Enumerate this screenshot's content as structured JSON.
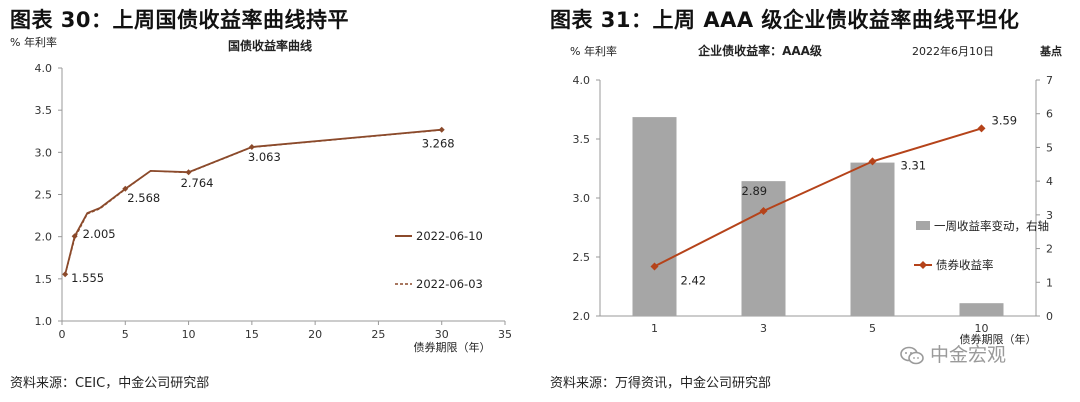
{
  "left": {
    "figure_title": "图表 30：上周国债收益率曲线持平",
    "unit_label": "% 年利率",
    "source": "资料来源：CEIC，中金公司研究部",
    "x_unit_label": "债券期限（年）",
    "colors": {
      "line": "#8B4A2B",
      "marker": "#8B4A2B",
      "axis": "#999999"
    }
  },
  "right": {
    "figure_title": "图表 31：上周 AAA 级企业债收益率曲线平坦化",
    "left_unit_label": "% 年利率",
    "right_unit_label": "基点",
    "date_label": "2022年6月10日",
    "source": "资料来源：万得资讯，中金公司研究部",
    "x_unit_label": "债券期限（年）",
    "colors": {
      "bar": "#A6A6A6",
      "line": "#B5431A",
      "axis": "#999999"
    }
  },
  "watermark": "中金宏观",
  "chart_data": [
    {
      "type": "line",
      "title": "国债收益率曲线",
      "xlabel": "债券期限（年）",
      "ylabel": "% 年利率",
      "xlim": [
        0,
        35
      ],
      "ylim": [
        1.0,
        4.0
      ],
      "xticks": [
        0,
        5,
        10,
        15,
        20,
        25,
        30,
        35
      ],
      "yticks": [
        1.0,
        1.5,
        2.0,
        2.5,
        3.0,
        3.5,
        4.0
      ],
      "legend_position": "right",
      "series": [
        {
          "name": "2022-06-10",
          "style": "solid-with-markers",
          "x": [
            0.25,
            1,
            2,
            3,
            5,
            7,
            10,
            15,
            30
          ],
          "y": [
            1.555,
            2.005,
            2.28,
            2.34,
            2.568,
            2.78,
            2.764,
            3.063,
            3.268
          ]
        },
        {
          "name": "2022-06-03",
          "style": "dashed",
          "x": [
            0.25,
            1,
            2,
            3,
            5,
            7,
            10,
            15,
            30
          ],
          "y": [
            1.55,
            1.98,
            2.27,
            2.33,
            2.56,
            2.78,
            2.76,
            3.06,
            3.265
          ]
        }
      ],
      "data_labels": [
        {
          "x": 0.25,
          "y": 1.555,
          "text": "1.555"
        },
        {
          "x": 1,
          "y": 2.005,
          "text": "2.005"
        },
        {
          "x": 5,
          "y": 2.568,
          "text": "2.568"
        },
        {
          "x": 10,
          "y": 2.764,
          "text": "2.764"
        },
        {
          "x": 15,
          "y": 3.063,
          "text": "3.063"
        },
        {
          "x": 30,
          "y": 3.268,
          "text": "3.268"
        }
      ]
    },
    {
      "type": "bar",
      "title": "企业债收益率：AAA级",
      "xlabel": "债券期限（年）",
      "ylabel": "% 年利率",
      "y2label": "基点",
      "categories": [
        "1",
        "3",
        "5",
        "10"
      ],
      "ylim": [
        2.0,
        4.0
      ],
      "yticks": [
        2.0,
        2.5,
        3.0,
        3.5,
        4.0
      ],
      "y2lim": [
        0,
        7
      ],
      "y2ticks": [
        0,
        1,
        2,
        3,
        4,
        5,
        6,
        7
      ],
      "legend_position": "right",
      "series": [
        {
          "name": "一周收益率变动，右轴",
          "type": "bar",
          "axis": "right",
          "values": [
            5.9,
            4.0,
            4.55,
            0.38
          ]
        },
        {
          "name": "债券收益率",
          "type": "line",
          "axis": "left",
          "values": [
            2.42,
            2.89,
            3.31,
            3.59
          ]
        }
      ],
      "data_labels": [
        "2.42",
        "2.89",
        "3.31",
        "3.59"
      ]
    }
  ]
}
